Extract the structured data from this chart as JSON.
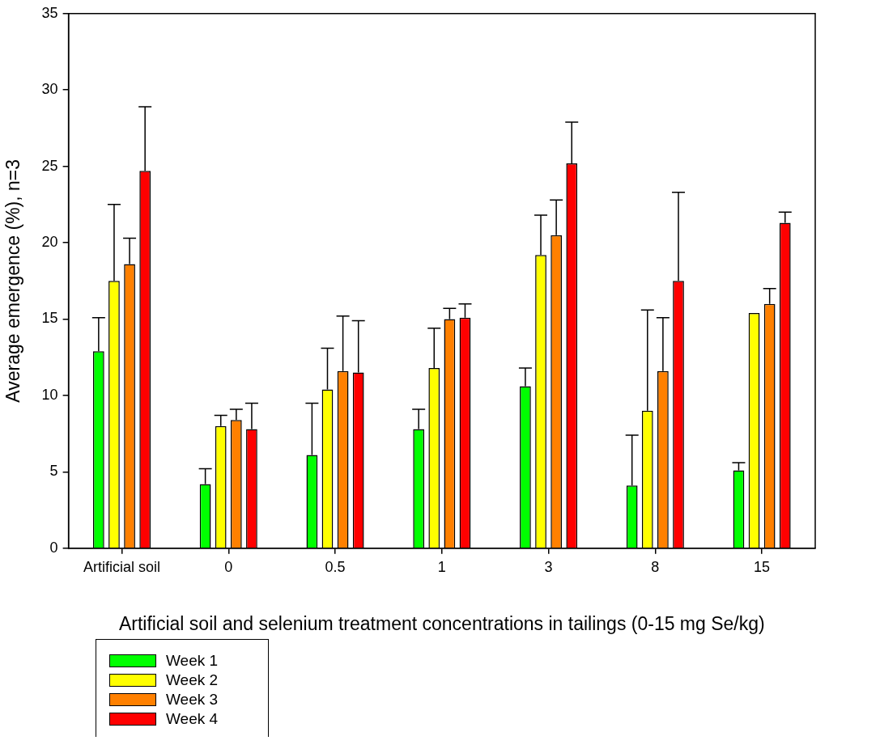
{
  "chart_data": {
    "type": "bar",
    "xlabel": "Artificial soil and selenium treatment concentrations in tailings (0-15 mg Se/kg)",
    "ylabel": "Average emergence (%), n=3",
    "categories": [
      "Artificial soil",
      "0",
      "0.5",
      "1",
      "3",
      "8",
      "15"
    ],
    "series": [
      {
        "name": "Week 1",
        "color": "#00ff00",
        "values": [
          12.9,
          4.2,
          6.1,
          7.8,
          10.6,
          4.1,
          5.1
        ],
        "errors": [
          [
            12.9,
            15.1
          ],
          [
            4.2,
            5.2
          ],
          [
            6.1,
            9.5
          ],
          [
            7.8,
            9.1
          ],
          [
            10.6,
            11.8
          ],
          [
            4.1,
            7.4
          ],
          [
            5.1,
            5.6
          ]
        ]
      },
      {
        "name": "Week 2",
        "color": "#ffff00",
        "values": [
          17.5,
          8.0,
          10.4,
          11.8,
          19.2,
          9.0,
          15.4
        ],
        "errors": [
          [
            17.5,
            22.5
          ],
          [
            8.0,
            8.7
          ],
          [
            10.4,
            13.1
          ],
          [
            11.8,
            14.4
          ],
          [
            19.2,
            21.8
          ],
          [
            9.0,
            15.6
          ],
          null
        ]
      },
      {
        "name": "Week 3",
        "color": "#ff8000",
        "values": [
          18.6,
          8.4,
          11.6,
          15.0,
          20.5,
          11.6,
          16.0
        ],
        "errors": [
          [
            18.6,
            20.3
          ],
          [
            8.4,
            9.1
          ],
          [
            11.6,
            15.2
          ],
          [
            15.0,
            15.7
          ],
          [
            20.5,
            22.8
          ],
          [
            11.6,
            15.1
          ],
          [
            16.0,
            17.0
          ]
        ]
      },
      {
        "name": "Week 4",
        "color": "#ff0000",
        "values": [
          24.7,
          7.8,
          11.5,
          15.1,
          25.2,
          17.5,
          21.3
        ],
        "errors": [
          [
            24.7,
            28.9
          ],
          [
            7.8,
            9.5
          ],
          [
            11.5,
            14.9
          ],
          [
            15.1,
            16.0
          ],
          [
            25.2,
            27.9
          ],
          [
            17.5,
            23.3
          ],
          [
            21.3,
            22.0
          ]
        ]
      }
    ],
    "ylim": [
      0,
      35
    ],
    "yticks": [
      0,
      5,
      10,
      15,
      20,
      25,
      30,
      35
    ],
    "grid": false,
    "legend": "bottom left"
  }
}
